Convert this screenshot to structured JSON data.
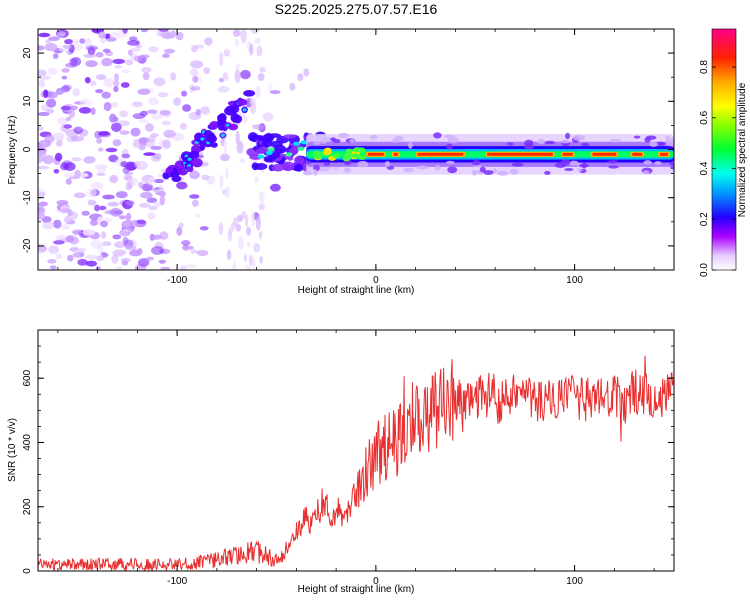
{
  "figure_title": "S225.2025.275.07.57.E16",
  "chart_data": [
    {
      "type": "heatmap",
      "title": "S225.2025.275.07.57.E16",
      "xlabel": "Height of straight line (km)",
      "ylabel": "Frequency (Hz)",
      "xlim": [
        -170,
        150
      ],
      "ylim": [
        -25,
        25
      ],
      "xticks": [
        -100,
        0,
        100
      ],
      "xtick_labels": [
        "-100",
        "0",
        "100"
      ],
      "yticks": [
        -20,
        -10,
        0,
        10,
        20
      ],
      "ytick_labels": [
        "-20",
        "-10",
        "0",
        "10",
        "20"
      ],
      "colorbar": {
        "label": "Normalized spectral amplitude",
        "range": [
          0,
          0.95
        ],
        "ticks": [
          0,
          0.2,
          0.4,
          0.6,
          0.8
        ],
        "tick_labels": [
          "0.0",
          "0.2",
          "0.4",
          "0.6",
          "0.8"
        ]
      },
      "features": {
        "noise_region_x": [
          -170,
          -60
        ],
        "rising_trace": [
          [
            -105,
            -6
          ],
          [
            -95,
            -3
          ],
          [
            -85,
            2
          ],
          [
            -75,
            6
          ],
          [
            -65,
            10
          ]
        ],
        "ridge_frequency_hz": -1,
        "ridge_x": [
          -55,
          150
        ],
        "ridge_peak_amplitude": 0.9
      }
    },
    {
      "type": "line",
      "xlabel": "Height of straight line (km)",
      "ylabel": "SNR (10 * v/v)",
      "xlim": [
        -170,
        150
      ],
      "ylim": [
        0,
        750
      ],
      "xticks": [
        -100,
        0,
        100
      ],
      "xtick_labels": [
        "-100",
        "0",
        "100"
      ],
      "yticks": [
        0,
        200,
        400,
        600
      ],
      "ytick_labels": [
        "0",
        "200",
        "400",
        "600"
      ],
      "color": "#e83030",
      "series": [
        {
          "name": "SNR",
          "x": [
            -170,
            -150,
            -130,
            -110,
            -100,
            -90,
            -80,
            -70,
            -60,
            -50,
            -45,
            -40,
            -35,
            -30,
            -25,
            -20,
            -15,
            -10,
            -5,
            0,
            5,
            10,
            15,
            20,
            25,
            30,
            35,
            40,
            45,
            50,
            55,
            60,
            62,
            65,
            70,
            75,
            80,
            90,
            100,
            110,
            120,
            125,
            130,
            135,
            140,
            145,
            150
          ],
          "values": [
            20,
            20,
            20,
            20,
            20,
            25,
            35,
            50,
            60,
            40,
            60,
            120,
            160,
            150,
            190,
            180,
            190,
            250,
            310,
            360,
            390,
            400,
            440,
            470,
            490,
            510,
            520,
            530,
            530,
            540,
            540,
            580,
            500,
            560,
            550,
            550,
            530,
            530,
            540,
            530,
            540,
            520,
            560,
            540,
            550,
            540,
            560
          ]
        }
      ]
    }
  ]
}
